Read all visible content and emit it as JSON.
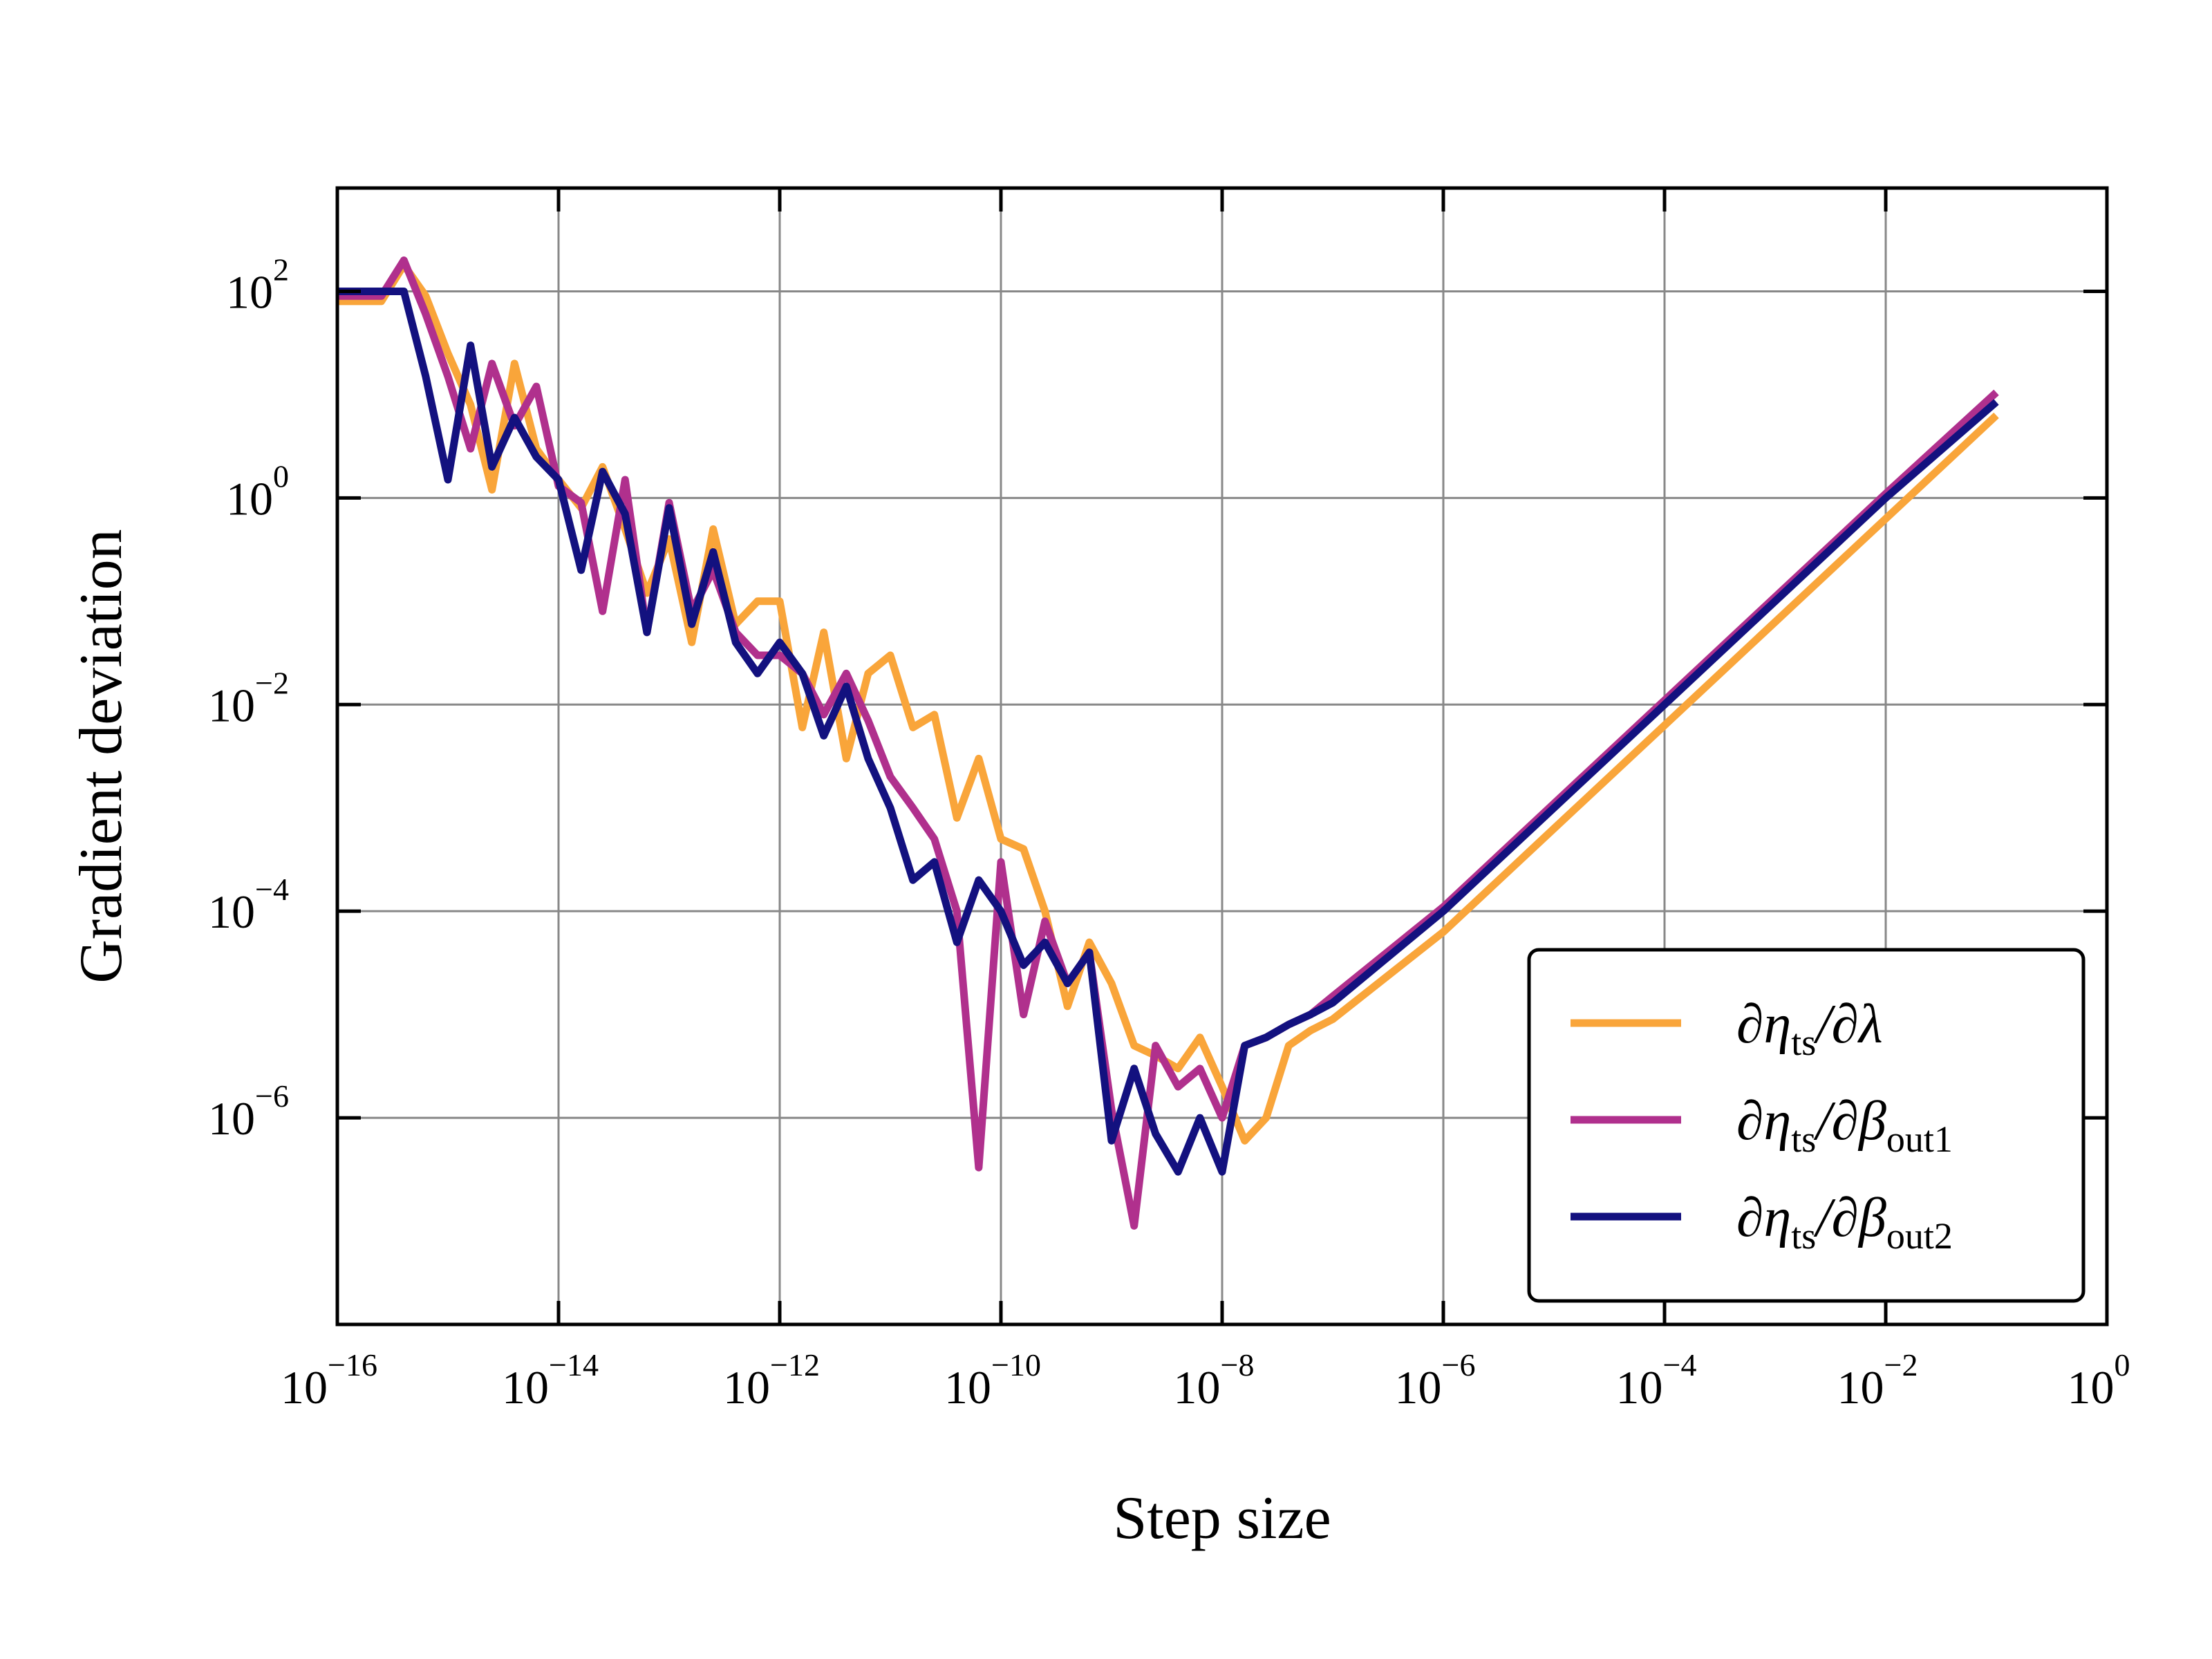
{
  "chart_data": {
    "type": "line",
    "xlabel": "Step size",
    "ylabel": "Gradient deviation",
    "xscale": "log",
    "yscale": "log",
    "xlim": [
      1e-16,
      1
    ],
    "ylim": [
      1e-08,
      1000
    ],
    "grid": true,
    "legend_position": "lower-right",
    "x_ticks": [
      {
        "value": 1e-16,
        "base": "10",
        "exp": "−16"
      },
      {
        "value": 1e-14,
        "base": "10",
        "exp": "−14"
      },
      {
        "value": 1e-12,
        "base": "10",
        "exp": "−12"
      },
      {
        "value": 1e-10,
        "base": "10",
        "exp": "−10"
      },
      {
        "value": 1e-08,
        "base": "10",
        "exp": "−8"
      },
      {
        "value": 1e-06,
        "base": "10",
        "exp": "−6"
      },
      {
        "value": 0.0001,
        "base": "10",
        "exp": "−4"
      },
      {
        "value": 0.01,
        "base": "10",
        "exp": "−2"
      },
      {
        "value": 1,
        "base": "10",
        "exp": "0"
      }
    ],
    "y_ticks": [
      {
        "value": 100,
        "base": "10",
        "exp": "2"
      },
      {
        "value": 1,
        "base": "10",
        "exp": "0"
      },
      {
        "value": 0.01,
        "base": "10",
        "exp": "−2"
      },
      {
        "value": 0.0001,
        "base": "10",
        "exp": "−4"
      },
      {
        "value": 1e-06,
        "base": "10",
        "exp": "−6"
      }
    ],
    "x": [
      1e-16,
      1.6e-16,
      2.5e-16,
      4e-16,
      6.3e-16,
      1e-15,
      1.6e-15,
      2.5e-15,
      4e-15,
      6.3e-15,
      1e-14,
      1.6e-14,
      2.5e-14,
      4e-14,
      6.3e-14,
      1e-13,
      1.6e-13,
      2.5e-13,
      4e-13,
      6.3e-13,
      1e-12,
      1.6e-12,
      2.5e-12,
      4e-12,
      6.3e-12,
      1e-11,
      1.6e-11,
      2.5e-11,
      4e-11,
      6.3e-11,
      1e-10,
      1.6e-10,
      2.5e-10,
      4e-10,
      6.3e-10,
      1e-09,
      1.6e-09,
      2.5e-09,
      4e-09,
      6.3e-09,
      1e-08,
      1.6e-08,
      2.5e-08,
      4e-08,
      6.3e-08,
      1e-07,
      1e-06,
      1e-05,
      0.0001,
      0.001,
      0.01,
      0.1
    ],
    "series": [
      {
        "name": "∂η_ts/∂λ",
        "color": "#f9a53a",
        "values": [
          80,
          80,
          80,
          180,
          90,
          25,
          8,
          1.2,
          20,
          3,
          1.5,
          0.8,
          2,
          0.5,
          0.12,
          0.4,
          0.04,
          0.5,
          0.06,
          0.1,
          0.1,
          0.006,
          0.05,
          0.003,
          0.02,
          0.03,
          0.006,
          0.008,
          0.0008,
          0.003,
          0.0005,
          0.0004,
          0.0001,
          1.2e-05,
          5e-05,
          2e-05,
          5e-06,
          4e-06,
          3e-06,
          6e-06,
          2e-06,
          6e-07,
          1e-06,
          5e-06,
          7e-06,
          9e-06,
          6.3e-05,
          0.00063,
          0.0063,
          0.063,
          0.63,
          6.3
        ]
      },
      {
        "name": "∂η_ts/∂β_out1",
        "color": "#b0308d",
        "values": [
          90,
          90,
          90,
          200,
          60,
          15,
          3,
          20,
          5,
          12,
          1.3,
          0.9,
          0.08,
          1.5,
          0.05,
          0.9,
          0.08,
          0.2,
          0.05,
          0.03,
          0.03,
          0.02,
          0.008,
          0.02,
          0.007,
          0.002,
          0.001,
          0.0005,
          0.0001,
          3.3e-07,
          0.0003,
          1e-05,
          8e-05,
          2e-05,
          4e-05,
          1.2e-06,
          9e-08,
          5e-06,
          2e-06,
          3e-06,
          1e-06,
          5e-06,
          6e-06,
          8e-06,
          1e-05,
          1.5e-05,
          0.00011,
          0.0011,
          0.011,
          0.11,
          1.1,
          10.5
        ]
      },
      {
        "name": "∂η_ts/∂β_out2",
        "color": "#13117f",
        "values": [
          100,
          100,
          100,
          100,
          15,
          1.5,
          30,
          2,
          6,
          2.5,
          1.5,
          0.2,
          1.8,
          0.7,
          0.05,
          0.8,
          0.06,
          0.3,
          0.04,
          0.02,
          0.04,
          0.02,
          0.005,
          0.015,
          0.003,
          0.001,
          0.0002,
          0.0003,
          5e-05,
          0.0002,
          0.0001,
          3e-05,
          5e-05,
          2e-05,
          4e-05,
          6e-07,
          3e-06,
          7e-07,
          3e-07,
          1e-06,
          3e-07,
          5e-06,
          6e-06,
          8e-06,
          1e-05,
          1.3e-05,
          0.0001,
          0.001,
          0.01,
          0.1,
          1,
          8.5
        ]
      }
    ]
  },
  "legend": {
    "items": [
      {
        "pre": "∂η",
        "sub": "ts",
        "post": "/∂λ",
        "sub2": ""
      },
      {
        "pre": "∂η",
        "sub": "ts",
        "post": "/∂β",
        "sub2": "out1"
      },
      {
        "pre": "∂η",
        "sub": "ts",
        "post": "/∂β",
        "sub2": "out2"
      }
    ]
  }
}
